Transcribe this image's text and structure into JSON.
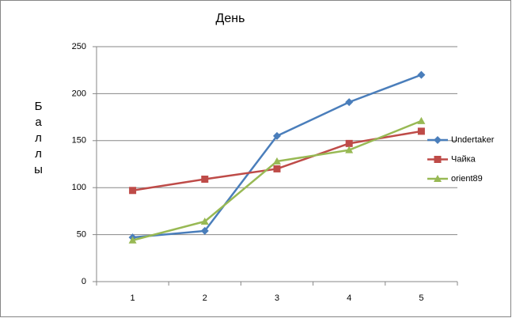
{
  "chart_data": {
    "type": "line",
    "title": "День",
    "y_label": "Баллы",
    "categories": [
      "1",
      "2",
      "3",
      "4",
      "5"
    ],
    "series": [
      {
        "name": "Undertaker",
        "color": "#4a7ebb",
        "marker": "diamond",
        "values": [
          47,
          54,
          155,
          191,
          220
        ]
      },
      {
        "name": "Чайка",
        "color": "#be4b48",
        "marker": "square",
        "values": [
          97,
          109,
          120,
          147,
          160
        ]
      },
      {
        "name": "orient89",
        "color": "#98b954",
        "marker": "triangle",
        "values": [
          44,
          64,
          128,
          140,
          171
        ]
      }
    ],
    "ylim": [
      0,
      250
    ],
    "yticks": [
      0,
      50,
      100,
      150,
      200,
      250
    ],
    "grid": true,
    "legend": "right"
  }
}
